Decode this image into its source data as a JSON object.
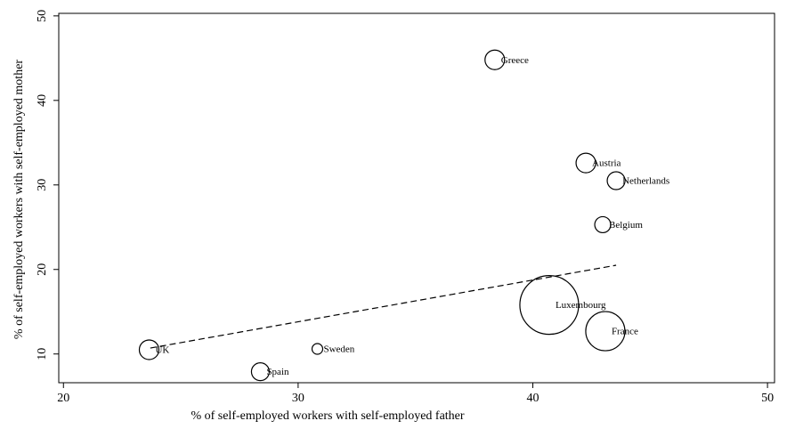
{
  "chart_data": {
    "type": "scatter",
    "xlabel": "% of self-employed workers with self-employed father",
    "ylabel": "% of self-employed workers with self-employed mother",
    "labels": [
      "Greece",
      "Austria",
      "Netherlands",
      "Belgium",
      "Luxembourg",
      "France",
      "UK",
      "Sweden",
      "Spain"
    ],
    "x": [
      38.38,
      42.26,
      43.55,
      42.98,
      40.7,
      43.09,
      23.65,
      30.82,
      28.39
    ],
    "y": [
      44.8,
      32.6,
      30.5,
      25.3,
      15.8,
      12.7,
      10.5,
      10.6,
      7.9
    ],
    "sizes": [
      121,
      121,
      100,
      81,
      1089,
      484,
      121,
      36,
      100
    ],
    "fit_line": {
      "x": [
        23.7,
        43.55
      ],
      "y": [
        10.7,
        20.5
      ]
    },
    "color": "#000000",
    "xlim": [
      19.8,
      50.3
    ],
    "xticks": [
      20,
      30,
      40,
      50
    ],
    "ylim": [
      6.6,
      50.3
    ],
    "yticks": [
      10,
      20,
      30,
      40,
      50
    ]
  }
}
